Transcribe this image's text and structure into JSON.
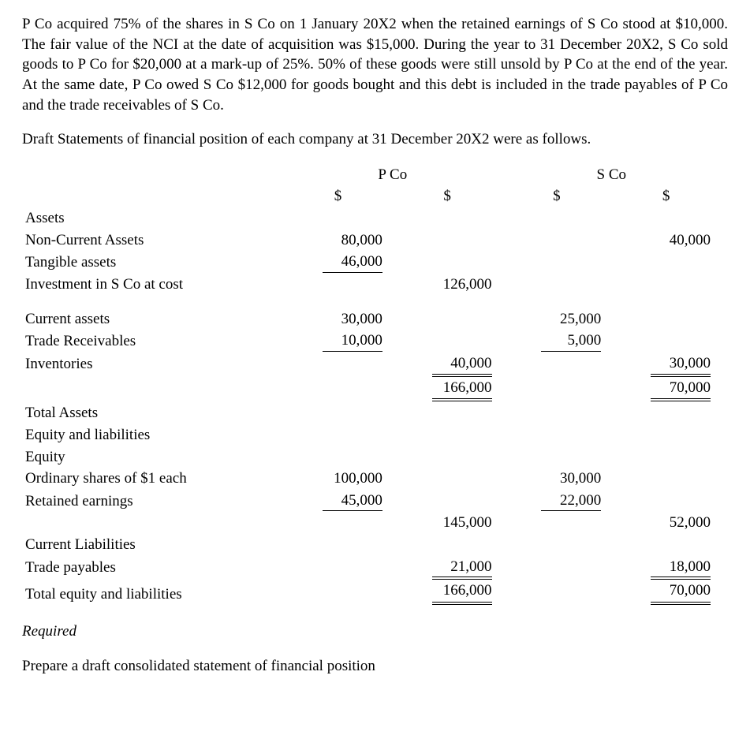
{
  "paragraph1": "P Co acquired 75% of the shares in S Co on 1 January 20X2 when the retained earnings of S Co stood at $10,000. The fair value of the NCI at the date of acquisition was $15,000. During the year to 31 December 20X2, S Co sold goods to P Co for $20,000 at a mark-up of 25%. 50% of these goods were still unsold by P Co at the end of the year. At the same date, P Co owed S Co $12,000 for goods bought and this debt is included in the trade payables of P Co and the trade receivables of S Co.",
  "paragraph2": "Draft Statements of financial position of each company at 31 December 20X2 were as follows.",
  "headers": {
    "pco": "P Co",
    "sco": "S Co",
    "dollar": "$"
  },
  "rows": {
    "assets": "Assets",
    "nca": "Non-Current Assets",
    "tangible": "Tangible assets",
    "investment": "Investment in S Co at cost",
    "ca": "Current assets",
    "tr": "Trade Receivables",
    "inv": "Inventories",
    "ta": "Total Assets",
    "el": "Equity and liabilities",
    "eq": "Equity",
    "shares": "Ordinary shares of $1 each",
    "re": "Retained earnings",
    "cl": "Current Liabilities",
    "tp": "Trade payables",
    "tel": "Total equity and liabilities"
  },
  "vals": {
    "pco_nca": "80,000",
    "pco_tangible": "46,000",
    "pco_nca_total": "126,000",
    "sco_nca": "40,000",
    "pco_ca": "30,000",
    "pco_tr": "10,000",
    "pco_ca_total": "40,000",
    "pco_total_assets": "166,000",
    "sco_ca": "25,000",
    "sco_tr": "5,000",
    "sco_ca_total": "30,000",
    "sco_total_assets": "70,000",
    "pco_shares": "100,000",
    "pco_re": "45,000",
    "pco_eq_total": "145,000",
    "sco_shares": "30,000",
    "sco_re": "22,000",
    "sco_eq_total": "52,000",
    "pco_tp": "21,000",
    "pco_tel": "166,000",
    "sco_tp": "18,000",
    "sco_tel": "70,000"
  },
  "required_label": "Required",
  "required_text": "Prepare a draft consolidated statement of financial position",
  "style": {
    "font_family": "Times New Roman",
    "font_size_pt": 14,
    "text_color": "#000000",
    "background_color": "#ffffff",
    "border_color": "#000000",
    "column_widths_pct": [
      38,
      15.5,
      15.5,
      15.5,
      15.5
    ]
  }
}
